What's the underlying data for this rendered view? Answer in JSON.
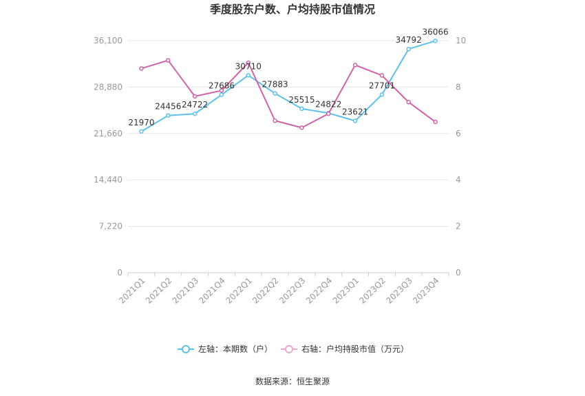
{
  "chart_data": {
    "type": "line",
    "title": "季度股东户数、户均持股市值情况",
    "categories": [
      "2021Q1",
      "2021Q2",
      "2021Q3",
      "2021Q4",
      "2022Q1",
      "2022Q2",
      "2022Q3",
      "2022Q4",
      "2023Q1",
      "2023Q2",
      "2023Q3",
      "2023Q4"
    ],
    "left_axis": {
      "ticks": [
        "0",
        "7,220",
        "14,440",
        "21,660",
        "28,880",
        "36,100"
      ],
      "ylim": [
        0,
        36100
      ]
    },
    "right_axis": {
      "ticks": [
        "0",
        "2",
        "4",
        "6",
        "8",
        "10"
      ],
      "ylim": [
        0,
        10
      ]
    },
    "series": [
      {
        "name": "左轴：本期数（户）",
        "axis": "left",
        "color": "#5bc0eb",
        "values": [
          21970,
          24456,
          24722,
          27686,
          30710,
          27883,
          25515,
          24822,
          23621,
          27701,
          34792,
          36066
        ],
        "labels": [
          "21970",
          "24456",
          "24722",
          "27686",
          "30710",
          "27883",
          "25515",
          "24822",
          "23621",
          "27701",
          "34792",
          "36066"
        ]
      },
      {
        "name": "右轴：户均持股市值（万元）",
        "axis": "right",
        "color": "#d062a8",
        "values": [
          8.8,
          9.15,
          7.6,
          7.85,
          9.05,
          6.55,
          6.25,
          6.85,
          8.95,
          8.5,
          7.35,
          6.5
        ]
      }
    ],
    "grid": true,
    "legend_position": "bottom"
  },
  "source": "数据来源：恒生聚源"
}
